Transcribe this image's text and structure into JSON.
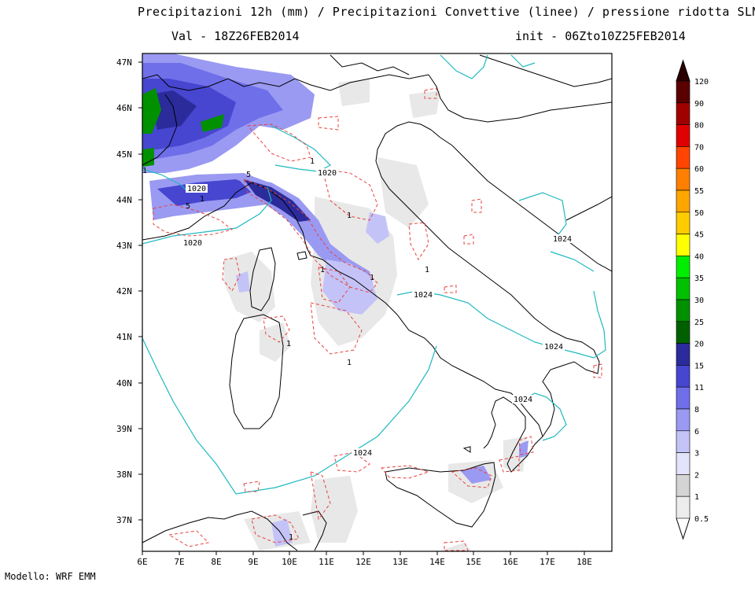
{
  "header": {
    "title": "Precipitazioni 12h (mm) / Precipitazioni Convettive (linee) / pressione ridotta SLM",
    "valid": "Val -  18Z26FEB2014",
    "init": "init - 06Zto10Z25FEB2014"
  },
  "footer": {
    "model": "Modello: WRF EMM"
  },
  "map": {
    "lon_labels": [
      "6E",
      "7E",
      "8E",
      "9E",
      "10E",
      "11E",
      "12E",
      "13E",
      "14E",
      "15E",
      "16E",
      "17E",
      "18E"
    ],
    "lat_labels": [
      "47N",
      "46N",
      "45N",
      "44N",
      "43N",
      "42N",
      "41N",
      "40N",
      "39N",
      "38N",
      "37N"
    ],
    "isobar_labels": [
      "1020",
      "1020",
      "1020",
      "1024",
      "1024",
      "1024",
      "1024",
      "1024"
    ],
    "convective_labels": [
      "1",
      "1",
      "5",
      "5",
      "1",
      "1",
      "1",
      "1",
      "1",
      "1",
      "1",
      "1"
    ],
    "colors": {
      "land_border": "#000000",
      "isobar": "#1fb9c0",
      "convective": "#e8423e"
    }
  },
  "colorbar": {
    "levels": [
      "120",
      "90",
      "80",
      "70",
      "60",
      "55",
      "50",
      "45",
      "40",
      "35",
      "30",
      "25",
      "20",
      "15",
      "11",
      "8",
      "6",
      "3",
      "2",
      "1",
      "0.5"
    ],
    "colors": [
      "#2a0000",
      "#5a0000",
      "#a00000",
      "#e00000",
      "#ff4500",
      "#ff7f00",
      "#ffa500",
      "#ffcc00",
      "#ffff00",
      "#00ee00",
      "#00c000",
      "#009000",
      "#006000",
      "#2b2b9b",
      "#4646d0",
      "#6f6fea",
      "#9a9af2",
      "#c3c3f7",
      "#e2e2fb",
      "#d4d4d4",
      "#ececec"
    ]
  }
}
